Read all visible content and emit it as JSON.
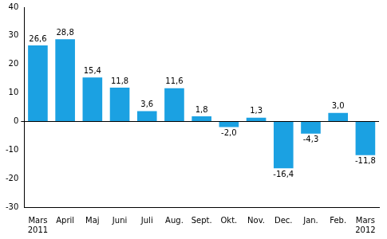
{
  "chart_data": {
    "type": "bar",
    "categories": [
      [
        "Mars",
        "2011"
      ],
      "April",
      "Maj",
      "Juni",
      "Juli",
      "Aug.",
      "Sept.",
      "Okt.",
      "Nov.",
      "Dec.",
      "Jan.",
      "Feb.",
      [
        "Mars",
        "2012"
      ]
    ],
    "values": [
      26.6,
      28.8,
      15.4,
      11.8,
      3.6,
      11.6,
      1.8,
      -2.0,
      1.3,
      -16.4,
      -4.3,
      3.0,
      -11.8
    ],
    "value_labels": [
      "26,6",
      "28,8",
      "15,4",
      "11,8",
      "3,6",
      "11,6",
      "1,8",
      "-2,0",
      "1,3",
      "-16,4",
      "-4,3",
      "3,0",
      "-11,8"
    ],
    "data_labels": true,
    "color": "#1ba1e2",
    "ylim": [
      -30,
      40
    ],
    "yticks": [
      -30,
      -20,
      -10,
      0,
      10,
      20,
      30,
      40
    ],
    "grid": false
  }
}
